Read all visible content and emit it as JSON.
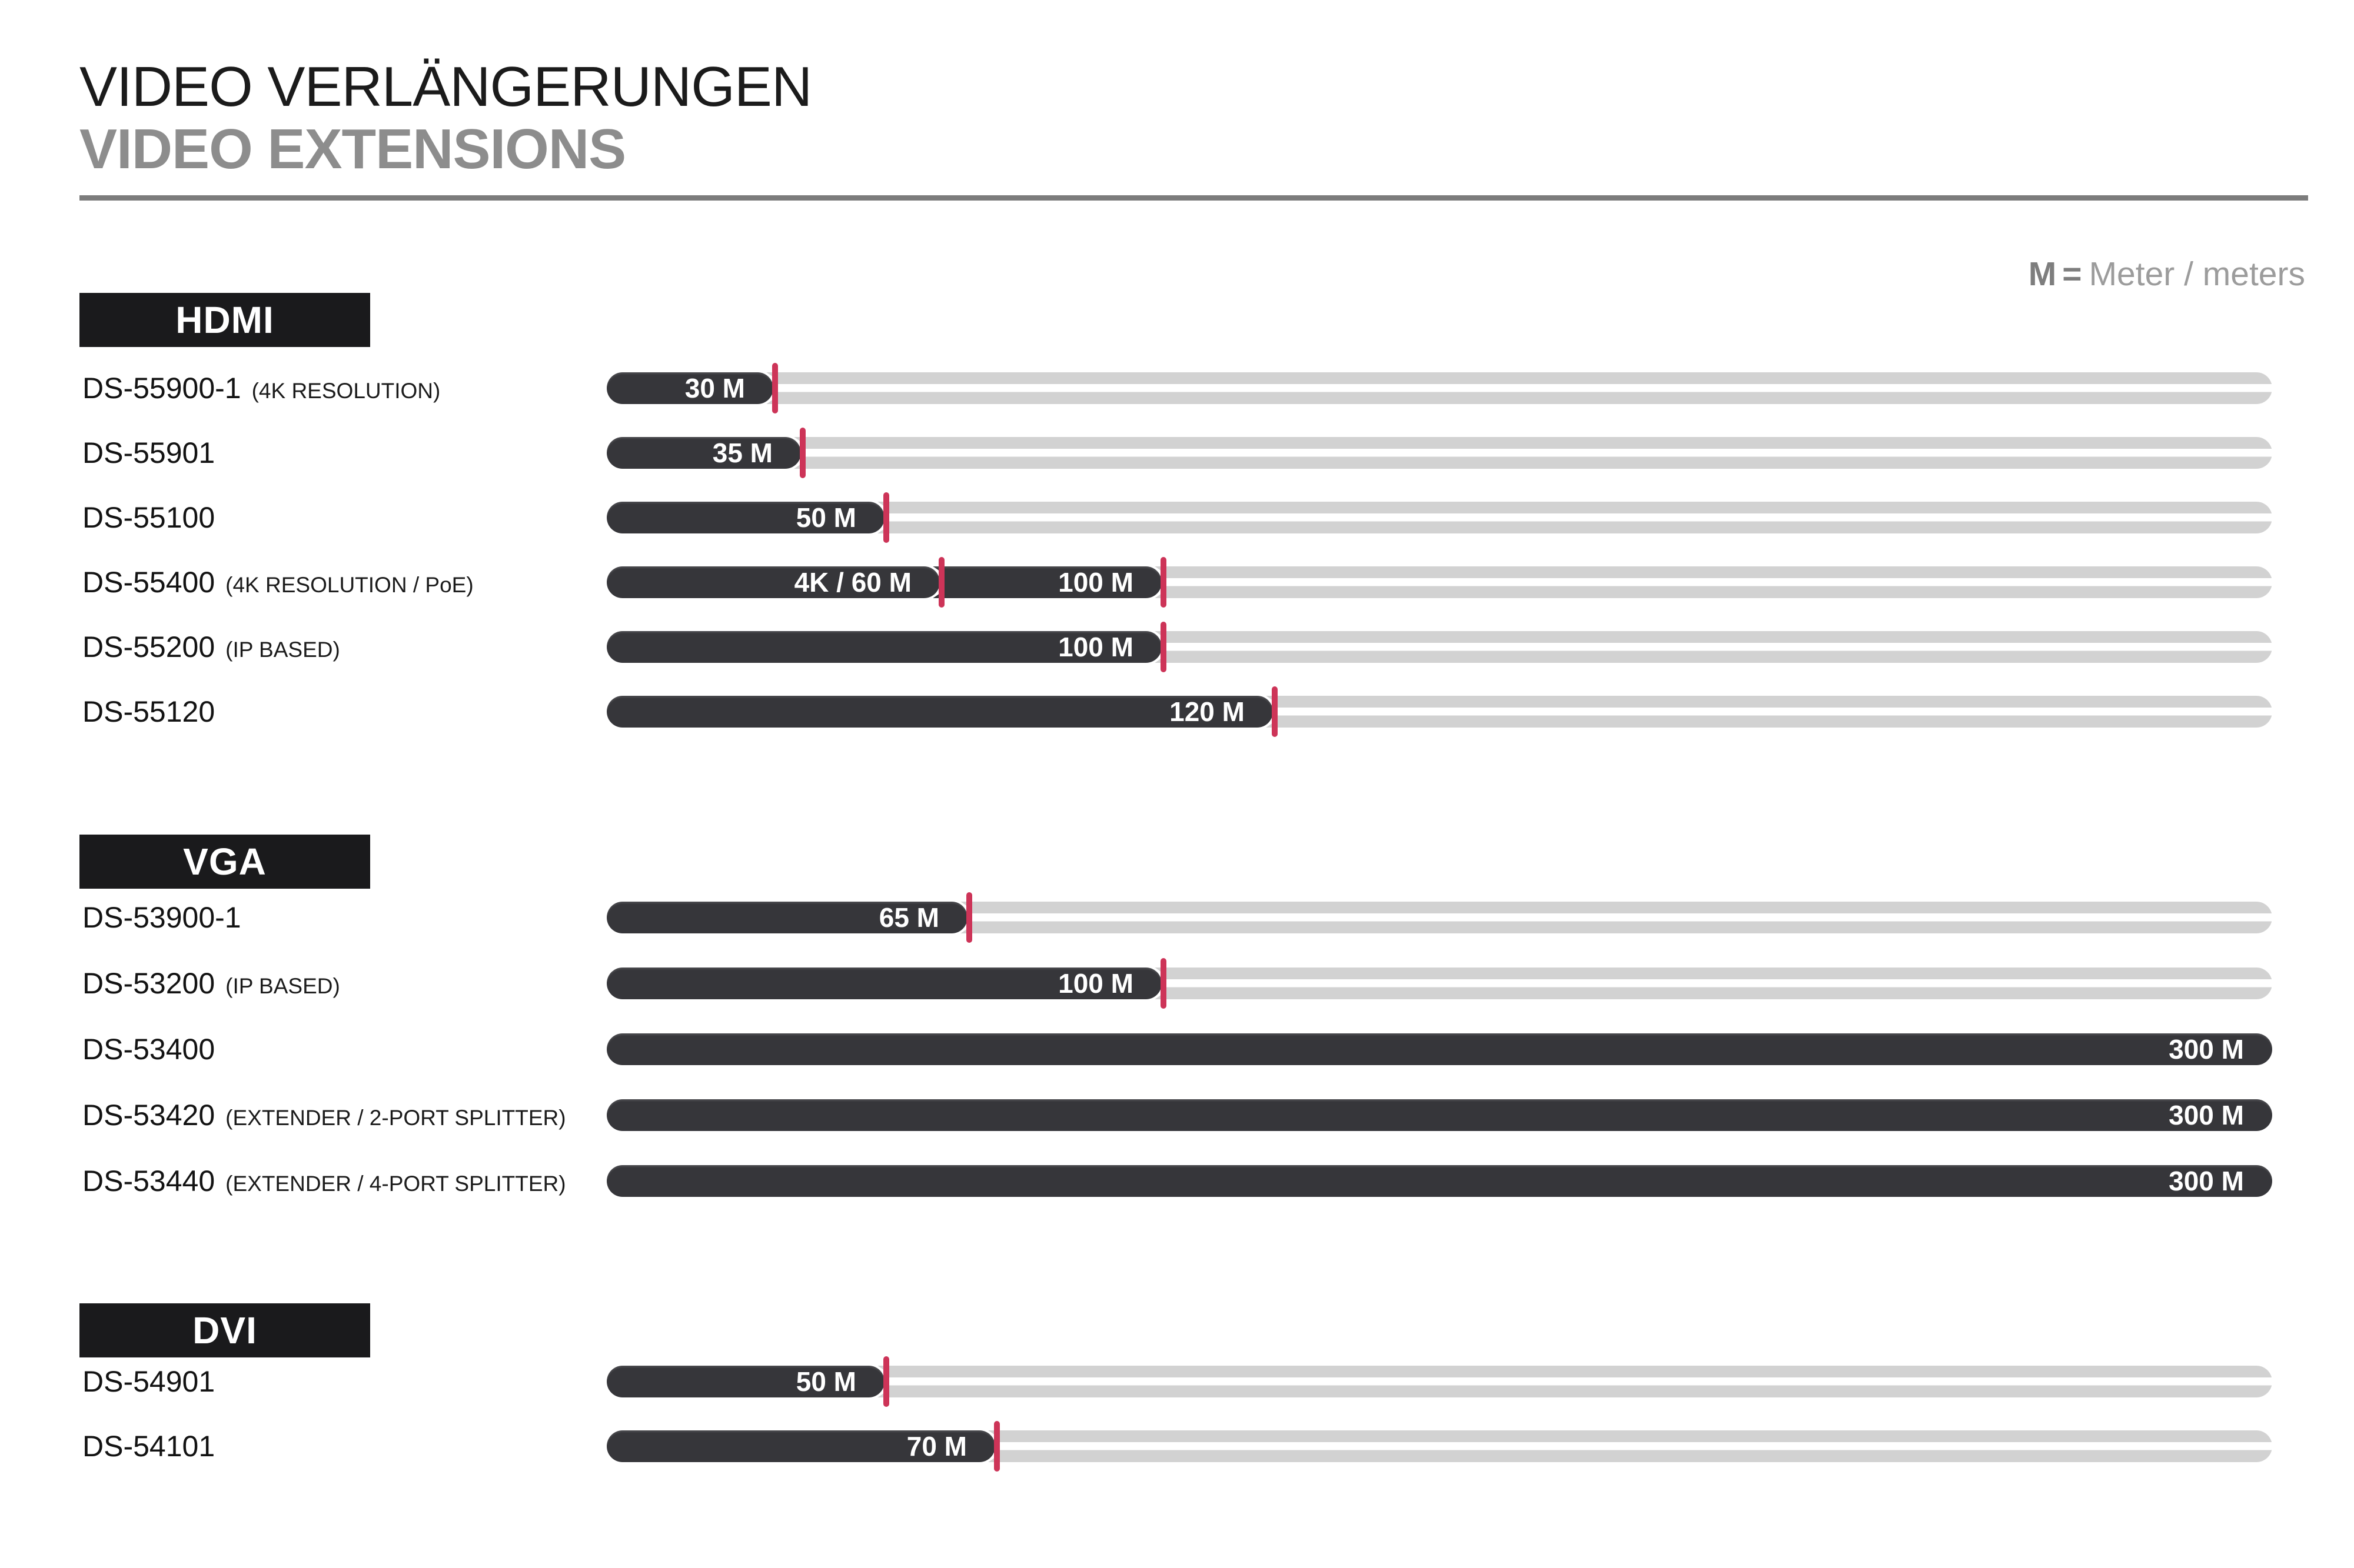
{
  "header": {
    "title_de": "VIDEO VERLÄNGERUNGEN",
    "title_en": "VIDEO EXTENSIONS"
  },
  "legend": {
    "symbol": "M",
    "equals": "=",
    "text": "Meter / meters"
  },
  "colors": {
    "bar": "#36363a",
    "track": "#d2d2d2",
    "tick": "#cd3458",
    "badge_background": "#1a1a1c",
    "title_secondary": "#8d8d8d"
  },
  "chart_data": {
    "type": "bar",
    "orientation": "horizontal",
    "title": "VIDEO VERLÄNGERUNGEN / VIDEO EXTENSIONS",
    "unit": "meters",
    "unit_symbol": "M",
    "axis_max_meters": 300,
    "legend": "M = Meter / meters",
    "groups": [
      {
        "section": "HDMI",
        "items": [
          {
            "model": "DS-55900-1",
            "note": "(4K RESOLUTION)",
            "max_meters": 30,
            "segments": [
              {
                "label": "30 M",
                "meters": 30,
                "tick": true
              }
            ]
          },
          {
            "model": "DS-55901",
            "note": "",
            "max_meters": 35,
            "segments": [
              {
                "label": "35 M",
                "meters": 35,
                "tick": true
              }
            ]
          },
          {
            "model": "DS-55100",
            "note": "",
            "max_meters": 50,
            "segments": [
              {
                "label": "50 M",
                "meters": 50,
                "tick": true
              }
            ]
          },
          {
            "model": "DS-55400",
            "note": "(4K RESOLUTION / PoE)",
            "max_meters": 100,
            "segments": [
              {
                "label": "4K / 60 M",
                "meters": 60,
                "tick": true
              },
              {
                "label": "100 M",
                "meters": 100,
                "tick": true
              }
            ]
          },
          {
            "model": "DS-55200",
            "note": "(IP BASED)",
            "max_meters": 100,
            "segments": [
              {
                "label": "100 M",
                "meters": 100,
                "tick": true
              }
            ]
          },
          {
            "model": "DS-55120",
            "note": "",
            "max_meters": 120,
            "segments": [
              {
                "label": "120 M",
                "meters": 120,
                "tick": true
              }
            ]
          }
        ]
      },
      {
        "section": "VGA",
        "items": [
          {
            "model": "DS-53900-1",
            "note": "",
            "max_meters": 65,
            "segments": [
              {
                "label": "65 M",
                "meters": 65,
                "tick": true
              }
            ]
          },
          {
            "model": "DS-53200",
            "note": "(IP BASED)",
            "max_meters": 100,
            "segments": [
              {
                "label": "100 M",
                "meters": 100,
                "tick": true
              }
            ]
          },
          {
            "model": "DS-53400",
            "note": "",
            "max_meters": 300,
            "segments": [
              {
                "label": "300 M",
                "meters": 300,
                "tick": false
              }
            ]
          },
          {
            "model": "DS-53420",
            "note": "(EXTENDER / 2-PORT SPLITTER)",
            "max_meters": 300,
            "segments": [
              {
                "label": "300 M",
                "meters": 300,
                "tick": false
              }
            ]
          },
          {
            "model": "DS-53440",
            "note": "(EXTENDER / 4-PORT SPLITTER)",
            "max_meters": 300,
            "segments": [
              {
                "label": "300 M",
                "meters": 300,
                "tick": false
              }
            ]
          }
        ]
      },
      {
        "section": "DVI",
        "items": [
          {
            "model": "DS-54901",
            "note": "",
            "max_meters": 50,
            "segments": [
              {
                "label": "50 M",
                "meters": 50,
                "tick": true
              }
            ]
          },
          {
            "model": "DS-54101",
            "note": "",
            "max_meters": 70,
            "segments": [
              {
                "label": "70 M",
                "meters": 70,
                "tick": true
              }
            ]
          }
        ]
      }
    ]
  }
}
